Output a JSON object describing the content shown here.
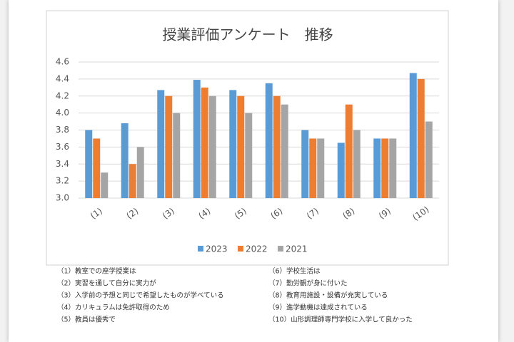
{
  "chart_data": {
    "type": "bar",
    "title": "授業評価アンケート　推移",
    "categories": [
      "(1)",
      "(2)",
      "(3)",
      "(4)",
      "(5)",
      "(6)",
      "(7)",
      "(8)",
      "(9)",
      "(10)"
    ],
    "series": [
      {
        "name": "2023",
        "color": "#5b9bd5",
        "values": [
          3.8,
          3.88,
          4.27,
          4.39,
          4.27,
          4.35,
          3.8,
          3.65,
          3.7,
          4.47
        ]
      },
      {
        "name": "2022",
        "color": "#ed7d31",
        "values": [
          3.7,
          3.4,
          4.2,
          4.3,
          4.2,
          4.2,
          3.7,
          4.1,
          3.7,
          4.4
        ]
      },
      {
        "name": "2021",
        "color": "#a5a5a5",
        "values": [
          3.3,
          3.6,
          4.0,
          4.2,
          4.0,
          4.1,
          3.7,
          3.8,
          3.7,
          3.9
        ]
      }
    ],
    "ylim": [
      3.0,
      4.6
    ],
    "yticks": [
      {
        "value": 3.0,
        "label": "3.0"
      },
      3.2,
      3.4,
      3.6,
      3.8,
      {
        "value": 4.0,
        "label": "4.0"
      },
      4.2,
      4.4,
      4.6
    ],
    "grid": true,
    "legend": "bottom",
    "notes": [
      "（1）教室での座学授業は",
      "（2）実習を通して自分に実力が",
      "（3）入学前の予想と同じで希望したものが学べている",
      "（4）カリキュラムは免許取得のため",
      "（5）教員は優秀で",
      "（6）学校生活は",
      "（7）勤労観が身に付いた",
      "（8）教育用施設・設備が充実している",
      "（9）進学動機は達成されている",
      "（10）山形調理師専門学校に入学して良かった"
    ]
  }
}
